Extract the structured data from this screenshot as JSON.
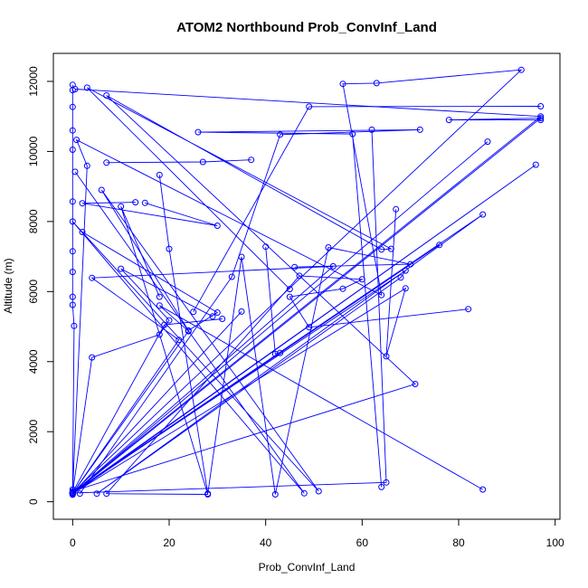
{
  "chart_data": {
    "type": "line",
    "title": "ATOM2 Northbound Prob_ConvInf_Land",
    "xlabel": "Prob_ConvInf_Land",
    "ylabel": "Altitude (m)",
    "xlim": [
      -4,
      101
    ],
    "ylim": [
      -500,
      12800
    ],
    "xticks": [
      0,
      20,
      40,
      60,
      80,
      100
    ],
    "yticks": [
      0,
      2000,
      4000,
      6000,
      8000,
      10000,
      12000
    ],
    "color": "#0000ff",
    "marker": "open-circle",
    "grid": false,
    "legend": "none",
    "series": [
      {
        "points": [
          [
            0,
            11900
          ],
          [
            0,
            11750
          ],
          [
            0,
            11270
          ],
          [
            0,
            10600
          ],
          [
            0,
            10050
          ],
          [
            0,
            8570
          ],
          [
            0,
            7150
          ],
          [
            0,
            6560
          ],
          [
            0,
            5850
          ],
          [
            0,
            5620
          ],
          [
            0.3,
            5020
          ],
          [
            0,
            350
          ],
          [
            0,
            250
          ],
          [
            0,
            220
          ],
          [
            0,
            200
          ]
        ]
      },
      {
        "points": [
          [
            0.5,
            11780
          ],
          [
            97,
            11000
          ],
          [
            0,
            260
          ],
          [
            93,
            12330
          ],
          [
            63,
            11950
          ],
          [
            56,
            11930
          ],
          [
            64,
            5900
          ],
          [
            0.8,
            10330
          ],
          [
            3,
            9590
          ],
          [
            0,
            300
          ],
          [
            71,
            3360
          ],
          [
            7,
            11600
          ],
          [
            64,
            7200
          ],
          [
            66,
            7220
          ],
          [
            3,
            11820
          ],
          [
            45,
            6070
          ]
        ]
      },
      {
        "points": [
          [
            0,
            230
          ],
          [
            97,
            10950
          ],
          [
            78,
            10900
          ],
          [
            97,
            10900
          ]
        ]
      },
      {
        "points": [
          [
            0,
            240
          ],
          [
            96,
            9620
          ],
          [
            0,
            220
          ],
          [
            86,
            10280
          ]
        ]
      },
      {
        "points": [
          [
            1.5,
            230
          ],
          [
            33,
            6420
          ],
          [
            43,
            10480
          ],
          [
            72,
            10620
          ],
          [
            26,
            10550
          ],
          [
            58,
            10500
          ],
          [
            64,
            420
          ]
        ]
      },
      {
        "points": [
          [
            25,
            5420
          ],
          [
            49,
            11280
          ],
          [
            97,
            11290
          ]
        ]
      },
      {
        "points": [
          [
            15,
            8530
          ],
          [
            30,
            7880
          ],
          [
            2,
            8520
          ],
          [
            13,
            8550
          ]
        ]
      },
      {
        "points": [
          [
            7,
            9680
          ],
          [
            27,
            9700
          ],
          [
            37,
            9760
          ]
        ]
      },
      {
        "points": [
          [
            0.5,
            9420
          ],
          [
            48,
            240
          ],
          [
            0,
            8000
          ],
          [
            51,
            300
          ],
          [
            6,
            8900
          ],
          [
            24,
            4890
          ],
          [
            30,
            5400
          ],
          [
            2,
            7700
          ]
        ]
      },
      {
        "points": [
          [
            18,
            9330
          ],
          [
            20,
            7220
          ],
          [
            28,
            230
          ],
          [
            35,
            6990
          ],
          [
            42,
            210
          ],
          [
            53,
            7260
          ],
          [
            70,
            6780
          ],
          [
            46,
            6700
          ]
        ]
      },
      {
        "points": [
          [
            0,
            260
          ],
          [
            69,
            6600
          ],
          [
            68,
            6400
          ],
          [
            5,
            230
          ],
          [
            85,
            8200
          ],
          [
            0,
            250
          ],
          [
            65,
            550
          ],
          [
            62,
            10620
          ]
        ]
      },
      {
        "points": [
          [
            18,
            5850
          ],
          [
            10,
            8430
          ],
          [
            28,
            210
          ],
          [
            7,
            230
          ],
          [
            47,
            6450
          ],
          [
            60,
            6350
          ],
          [
            56,
            6080
          ],
          [
            45,
            5850
          ],
          [
            49,
            4980
          ],
          [
            82,
            5500
          ]
        ]
      },
      {
        "points": [
          [
            40,
            7280
          ],
          [
            42,
            4220
          ],
          [
            43,
            4250
          ],
          [
            76,
            7330
          ],
          [
            0,
            230
          ],
          [
            69,
            6090
          ],
          [
            65,
            4150
          ],
          [
            67,
            8350
          ]
        ]
      },
      {
        "points": [
          [
            29,
            5290
          ],
          [
            10,
            6650
          ],
          [
            20,
            5180
          ],
          [
            18,
            4770
          ],
          [
            4,
            4120
          ],
          [
            0,
            270
          ],
          [
            19,
            5050
          ],
          [
            31,
            5220
          ]
        ]
      },
      {
        "points": [
          [
            35,
            5430
          ],
          [
            0,
            230
          ],
          [
            54,
            6720
          ],
          [
            4,
            6390
          ],
          [
            22,
            4620
          ],
          [
            0,
            240
          ],
          [
            24,
            4870
          ],
          [
            18,
            5600
          ],
          [
            85,
            350
          ]
        ]
      }
    ]
  }
}
